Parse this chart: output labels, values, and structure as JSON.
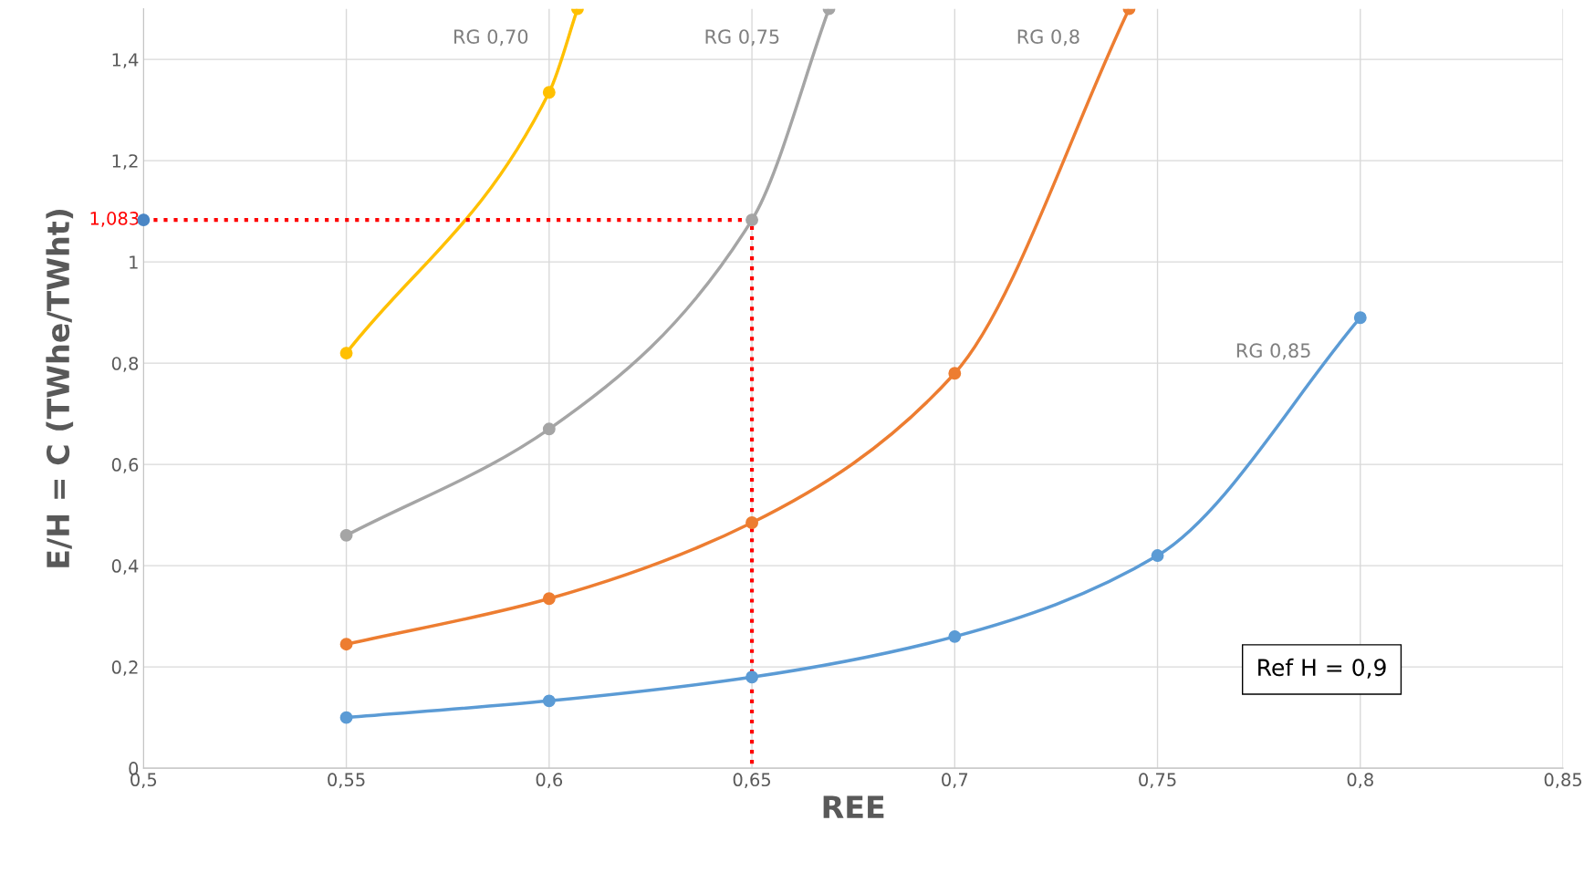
{
  "chart_data": {
    "type": "line",
    "xlabel": "REE",
    "ylabel": "E/H = C (TWhe/TWht)",
    "xlim": [
      0.5,
      0.85
    ],
    "ylim": [
      0,
      1.5
    ],
    "xticks": [
      {
        "value": 0.5,
        "label": "0,5"
      },
      {
        "value": 0.55,
        "label": "0,55"
      },
      {
        "value": 0.6,
        "label": "0,6"
      },
      {
        "value": 0.65,
        "label": "0,65"
      },
      {
        "value": 0.7,
        "label": "0,7"
      },
      {
        "value": 0.75,
        "label": "0,75"
      },
      {
        "value": 0.8,
        "label": "0,8"
      },
      {
        "value": 0.85,
        "label": "0,85"
      }
    ],
    "yticks": [
      0,
      {
        "value": 0.2,
        "label": "0,2"
      },
      {
        "value": 0.4,
        "label": "0,4"
      },
      {
        "value": 0.6,
        "label": "0,6"
      },
      {
        "value": 0.8,
        "label": "0,8"
      },
      1,
      {
        "value": 1.2,
        "label": "1,2"
      },
      {
        "value": 1.4,
        "label": "1,4"
      }
    ],
    "grid": true,
    "marker": "circle",
    "line_style": "solid",
    "series": [
      {
        "name": "RG 0,70",
        "color": "#ffc000",
        "x": [
          0.55,
          0.6,
          0.607
        ],
        "values": [
          0.82,
          1.335,
          1.5
        ]
      },
      {
        "name": "RG 0,75",
        "color": "#a5a5a5",
        "x": [
          0.55,
          0.6,
          0.65,
          0.669
        ],
        "values": [
          0.46,
          0.67,
          1.083,
          1.5
        ]
      },
      {
        "name": "RG 0,8",
        "color": "#ed7d31",
        "x": [
          0.55,
          0.6,
          0.65,
          0.7,
          0.743
        ],
        "values": [
          0.245,
          0.335,
          0.485,
          0.78,
          1.5
        ]
      },
      {
        "name": "RG 0,85",
        "color": "#5b9bd5",
        "x": [
          0.55,
          0.6,
          0.65,
          0.7,
          0.75,
          0.8
        ],
        "values": [
          0.1,
          0.133,
          0.18,
          0.26,
          0.42,
          0.89
        ]
      },
      {
        "type": "line",
        "color": "#ff0000",
        "line_style": "dotted",
        "marker": "none",
        "x": [
          0.5,
          0.65,
          0.65
        ],
        "values": [
          1.083,
          1.083,
          0
        ]
      },
      {
        "type": "scatter",
        "color": "#4a86c5",
        "x": [
          0.5
        ],
        "values": [
          1.083
        ]
      }
    ],
    "annotations": [
      {
        "text": "1,083",
        "x": 0.5,
        "y": 1.083
      },
      "Ref H = 0,9"
    ]
  }
}
